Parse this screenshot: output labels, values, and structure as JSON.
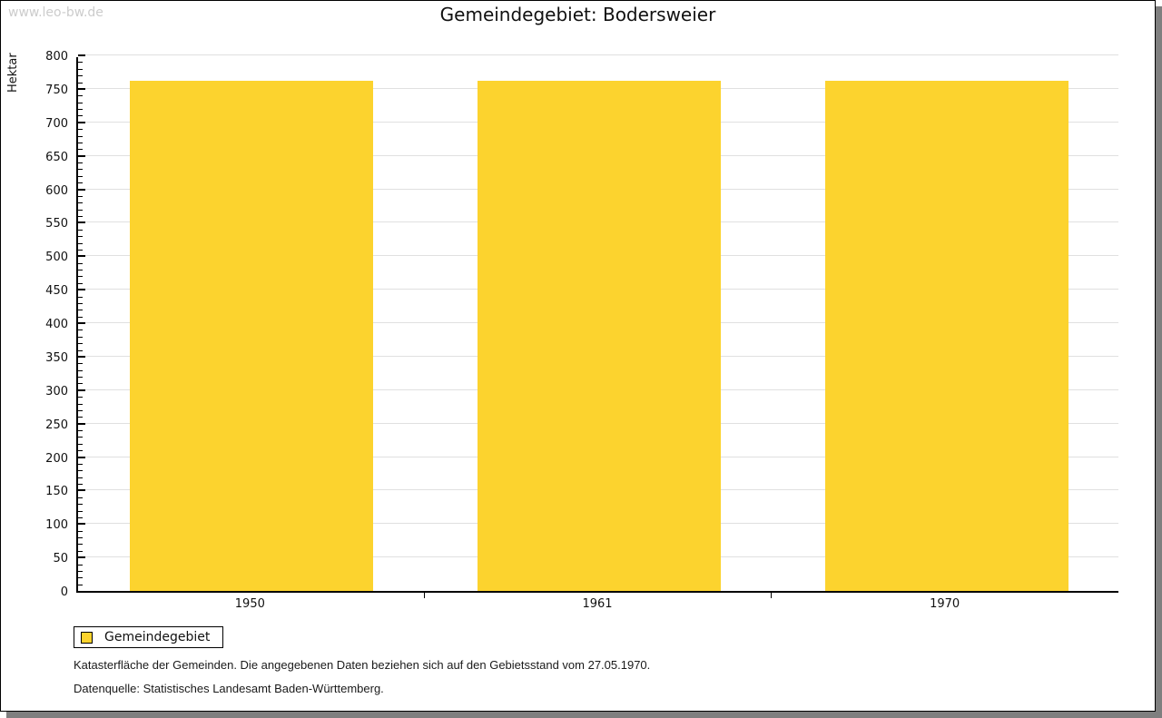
{
  "watermark": "www.leo-bw.de",
  "title": "Gemeindegebiet: Bodersweier",
  "chart_data": {
    "type": "bar",
    "title": "Gemeindegebiet: Bodersweier",
    "categories": [
      "1950",
      "1961",
      "1970"
    ],
    "series": [
      {
        "name": "Gemeindegebiet",
        "values": [
          762,
          762,
          762
        ]
      }
    ],
    "xlabel": "",
    "ylabel": "Hektar",
    "ylim": [
      0,
      800
    ],
    "y_major_step": 50,
    "y_minor_step": 10,
    "grid": true,
    "bar_color": "#fcd32e",
    "bar_width_fraction": 0.7,
    "legend_position": "bottom-left"
  },
  "legend": {
    "items": [
      {
        "label": "Gemeindegebiet",
        "color": "#fcd32e"
      }
    ]
  },
  "footer": {
    "line1": "Katasterfläche der Gemeinden. Die angegebenen Daten beziehen sich auf den Gebietsstand vom 27.05.1970.",
    "line2": "Datenquelle: Statistisches Landesamt Baden-Württemberg."
  },
  "colors": {
    "bar": "#fcd32e",
    "gridline": "#e0e0e0",
    "axis": "#000000",
    "shadow": "#7f7f7f",
    "watermark": "#cccccc",
    "background": "#ffffff"
  }
}
